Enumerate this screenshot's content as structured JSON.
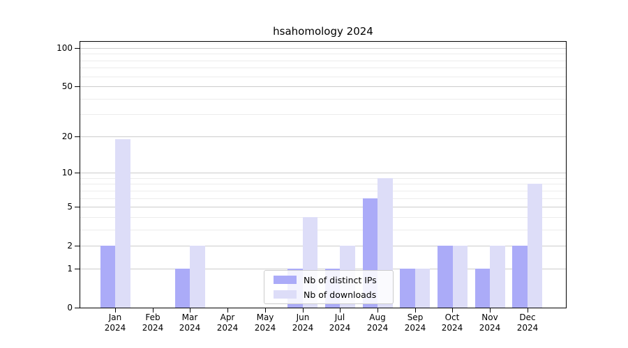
{
  "chart_data": {
    "type": "bar",
    "title": "hsahomology 2024",
    "categories": [
      "Jan",
      "Feb",
      "Mar",
      "Apr",
      "May",
      "Jun",
      "Jul",
      "Aug",
      "Sep",
      "Oct",
      "Nov",
      "Dec"
    ],
    "x_tick_second_line": "2024",
    "series": [
      {
        "key": "distinct-ips",
        "name": "Nb of distinct IPs",
        "color": "#ababf8",
        "values": [
          2,
          0,
          1,
          0,
          0,
          1,
          1,
          6,
          1,
          2,
          1,
          2
        ]
      },
      {
        "key": "downloads",
        "name": "Nb of downloads",
        "color": "#ddddf8",
        "values": [
          19,
          0,
          2,
          0,
          0,
          4,
          2,
          9,
          1,
          2,
          2,
          8
        ]
      }
    ],
    "y_scale": "log1p",
    "y_major_ticks": [
      0,
      1,
      2,
      5,
      10,
      20,
      50,
      100
    ],
    "y_minor_ticks": [
      3,
      4,
      6,
      7,
      8,
      9,
      30,
      40,
      60,
      70,
      80,
      90,
      110
    ],
    "ylim": [
      0,
      113
    ],
    "grid": true,
    "legend_position": "lower center"
  }
}
